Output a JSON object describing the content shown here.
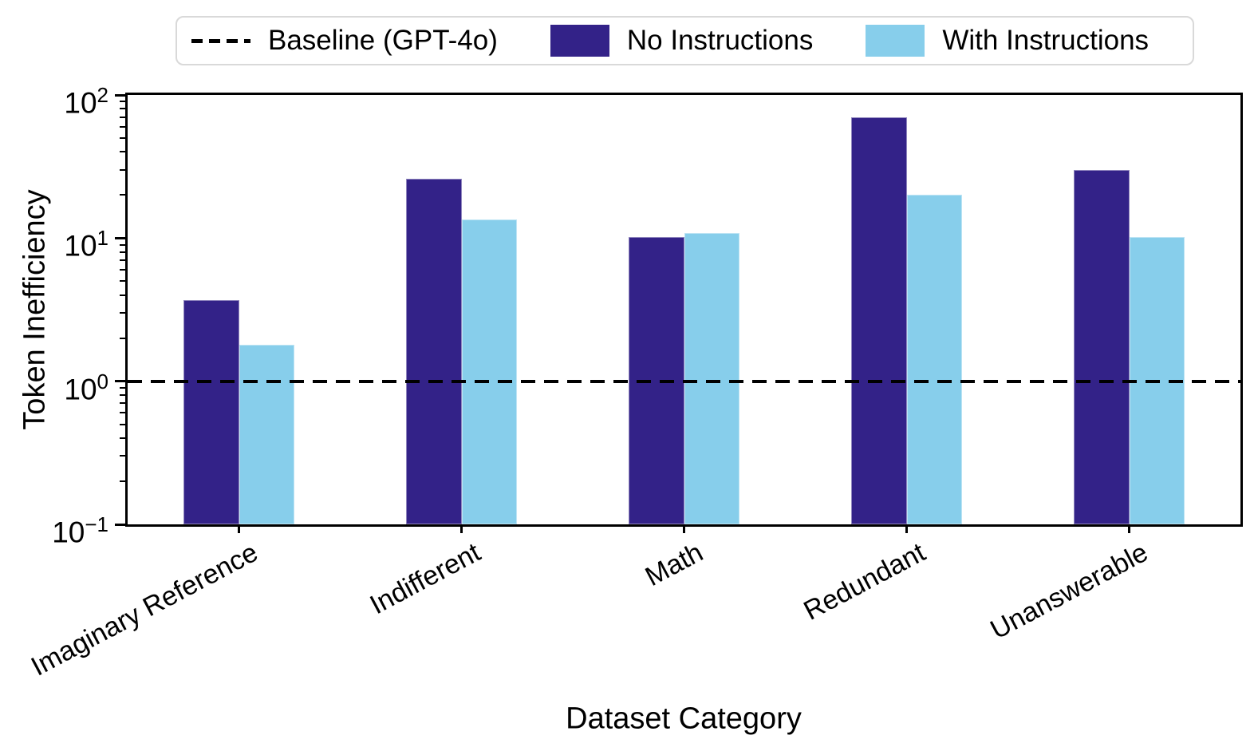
{
  "chart_data": {
    "type": "bar",
    "title": "",
    "xlabel": "Dataset Category",
    "ylabel": "Token Inefficiency",
    "yscale": "log",
    "ylim": [
      0.1,
      100
    ],
    "grid": false,
    "legend_position": "top",
    "categories": [
      "Imaginary Reference",
      "Indifferent",
      "Math",
      "Redundant",
      "Unanswerable"
    ],
    "series": [
      {
        "name": "No Instructions",
        "color": "#332288",
        "values": [
          3.7,
          26,
          10.2,
          70,
          30
        ]
      },
      {
        "name": "With Instructions",
        "color": "#87CEEB",
        "values": [
          1.8,
          13.5,
          10.8,
          20,
          10.2
        ]
      }
    ],
    "baseline": {
      "label": "Baseline (GPT-4o)",
      "value": 1.0,
      "style": "dashed",
      "color": "#000000"
    },
    "y_ticks": [
      {
        "value": 100,
        "base": "10",
        "exp": "2"
      },
      {
        "value": 10,
        "base": "10",
        "exp": "1"
      },
      {
        "value": 1,
        "base": "10",
        "exp": "0"
      },
      {
        "value": 0.1,
        "base": "10",
        "exp": "−1"
      }
    ]
  },
  "colors": {
    "background": "#ffffff",
    "axis": "#000000",
    "legend_border": "#d9d9d9"
  }
}
